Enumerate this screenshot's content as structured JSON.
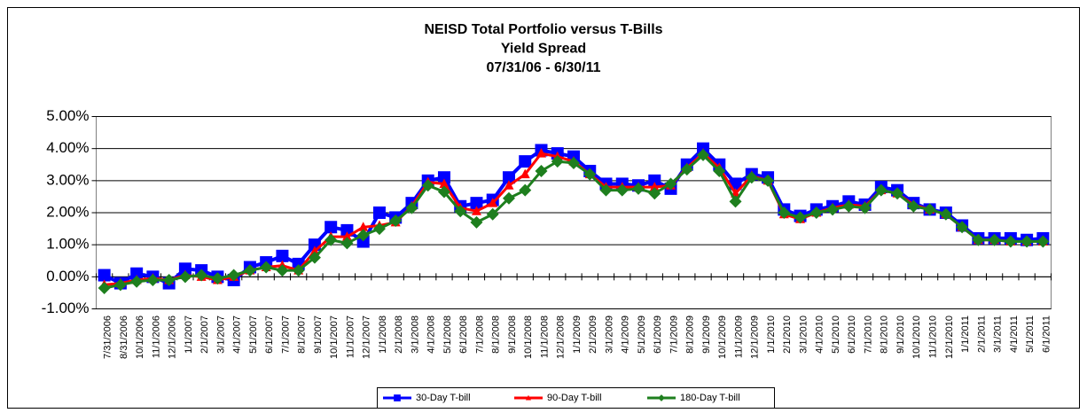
{
  "chart_data": {
    "type": "line",
    "title": [
      "NEISD Total Portfolio versus T-Bills",
      "Yield Spread",
      "07/31/06 - 6/30/11"
    ],
    "categories": [
      "7/31/2006",
      "8/31/2006",
      "10/1/2006",
      "11/1/2006",
      "12/1/2006",
      "1/1/2007",
      "2/1/2007",
      "3/1/2007",
      "4/1/2007",
      "5/1/2007",
      "6/1/2007",
      "7/1/2007",
      "8/1/2007",
      "9/1/2007",
      "10/1/2007",
      "11/1/2007",
      "12/1/2007",
      "1/1/2008",
      "2/1/2008",
      "3/1/2008",
      "4/1/2008",
      "5/1/2008",
      "6/1/2008",
      "7/1/2008",
      "8/1/2008",
      "9/1/2008",
      "10/1/2008",
      "11/1/2008",
      "12/1/2008",
      "1/1/2009",
      "2/1/2009",
      "3/1/2009",
      "4/1/2009",
      "5/1/2009",
      "6/1/2009",
      "7/1/2009",
      "8/1/2009",
      "9/1/2009",
      "10/1/2009",
      "11/1/2009",
      "12/1/2009",
      "1/1/2010",
      "2/1/2010",
      "3/1/2010",
      "4/1/2010",
      "5/1/2010",
      "6/1/2010",
      "7/1/2010",
      "8/1/2010",
      "9/1/2010",
      "10/1/2010",
      "11/1/2010",
      "12/1/2010",
      "1/1/2011",
      "2/1/2011",
      "3/1/2011",
      "4/1/2011",
      "5/1/2011",
      "6/1/2011"
    ],
    "series": [
      {
        "name": "30-Day T-bill",
        "color": "#0000ff",
        "marker": "square",
        "values": [
          0.05,
          -0.2,
          0.1,
          0.0,
          -0.2,
          0.25,
          0.2,
          0.0,
          -0.1,
          0.3,
          0.45,
          0.65,
          0.4,
          1.0,
          1.55,
          1.45,
          1.1,
          2.0,
          1.85,
          2.3,
          3.0,
          3.1,
          2.2,
          2.3,
          2.4,
          3.1,
          3.6,
          3.95,
          3.85,
          3.75,
          3.3,
          2.9,
          2.9,
          2.85,
          3.0,
          2.75,
          3.5,
          4.0,
          3.5,
          2.9,
          3.2,
          3.1,
          2.1,
          1.9,
          2.1,
          2.2,
          2.35,
          2.25,
          2.8,
          2.7,
          2.3,
          2.1,
          2.0,
          1.6,
          1.2,
          1.2,
          1.2,
          1.15,
          1.2
        ]
      },
      {
        "name": "90-Day T-bill",
        "color": "#ff0000",
        "marker": "triangle",
        "values": [
          -0.25,
          -0.2,
          -0.1,
          -0.05,
          -0.1,
          0.05,
          0.0,
          -0.1,
          0.0,
          0.2,
          0.3,
          0.35,
          0.2,
          0.8,
          1.25,
          1.25,
          1.55,
          1.6,
          1.7,
          2.2,
          2.95,
          2.9,
          2.15,
          2.05,
          2.3,
          2.85,
          3.2,
          3.85,
          3.75,
          3.6,
          3.2,
          2.8,
          2.8,
          2.8,
          2.8,
          2.85,
          3.4,
          3.85,
          3.4,
          2.6,
          3.15,
          3.0,
          1.95,
          1.8,
          2.0,
          2.15,
          2.25,
          2.2,
          2.7,
          2.6,
          2.25,
          2.1,
          1.95,
          1.55,
          1.15,
          1.15,
          1.1,
          1.1,
          1.1
        ]
      },
      {
        "name": "180-Day T-bill",
        "color": "#1e7f1e",
        "marker": "diamond",
        "values": [
          -0.35,
          -0.25,
          -0.15,
          -0.1,
          -0.1,
          0.0,
          0.05,
          -0.05,
          0.05,
          0.2,
          0.3,
          0.2,
          0.2,
          0.6,
          1.15,
          1.05,
          1.3,
          1.5,
          1.75,
          2.15,
          2.85,
          2.65,
          2.05,
          1.7,
          1.95,
          2.45,
          2.7,
          3.3,
          3.6,
          3.55,
          3.2,
          2.7,
          2.7,
          2.75,
          2.6,
          2.9,
          3.35,
          3.8,
          3.3,
          2.35,
          3.1,
          3.0,
          2.0,
          1.85,
          2.0,
          2.1,
          2.2,
          2.15,
          2.7,
          2.6,
          2.2,
          2.1,
          1.95,
          1.55,
          1.15,
          1.15,
          1.1,
          1.1,
          1.1
        ]
      }
    ],
    "ylim": [
      -1,
      5
    ],
    "yticks": [
      {
        "value": -1,
        "label": "-1.00%"
      },
      {
        "value": 0,
        "label": "0.00%"
      },
      {
        "value": 1,
        "label": "1.00%"
      },
      {
        "value": 2,
        "label": "2.00%"
      },
      {
        "value": 3,
        "label": "3.00%"
      },
      {
        "value": 4,
        "label": "4.00%"
      },
      {
        "value": 5,
        "label": "5.00%"
      }
    ],
    "grid": true,
    "legend": "bottom"
  }
}
